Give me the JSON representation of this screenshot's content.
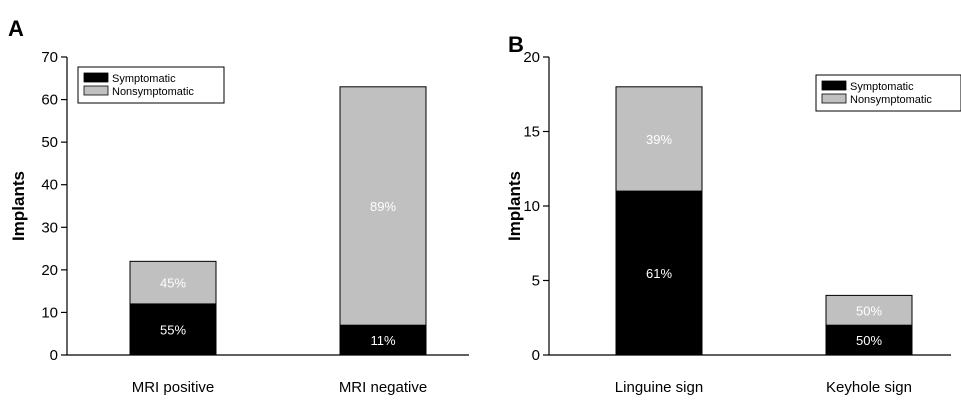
{
  "colors": {
    "symptomatic": "#000000",
    "nonsymptomatic": "#c0c0c0",
    "label_on_dark": "#ffffff",
    "label_on_light": "#ffffff"
  },
  "chart_data": [
    {
      "type": "bar",
      "stacked": true,
      "panel": "A",
      "categories": [
        "MRI positive",
        "MRI negative"
      ],
      "series": [
        {
          "name": "Symptomatic",
          "values": [
            12,
            7
          ],
          "labels": [
            "55%",
            "11%"
          ],
          "color": "#000000"
        },
        {
          "name": "Nonsymptomatic",
          "values": [
            10,
            56
          ],
          "labels": [
            "45%",
            "89%"
          ],
          "color": "#c0c0c0"
        }
      ],
      "ylabel": "Implants",
      "ylim": [
        0,
        70
      ],
      "yticks": [
        "0",
        "10",
        "20",
        "30",
        "40",
        "50",
        "60",
        "70"
      ],
      "legend_position": "top-left"
    },
    {
      "type": "bar",
      "stacked": true,
      "panel": "B",
      "categories": [
        "Linguine sign",
        "Keyhole sign"
      ],
      "series": [
        {
          "name": "Symptomatic",
          "values": [
            11,
            2
          ],
          "labels": [
            "61%",
            "50%"
          ],
          "color": "#000000"
        },
        {
          "name": "Nonsymptomatic",
          "values": [
            7,
            2
          ],
          "labels": [
            "39%",
            "50%"
          ],
          "color": "#c0c0c0"
        }
      ],
      "ylabel": "Implants",
      "ylim": [
        0,
        20
      ],
      "yticks": [
        "0",
        "5",
        "10",
        "15",
        "20"
      ],
      "legend_position": "top-right"
    }
  ]
}
